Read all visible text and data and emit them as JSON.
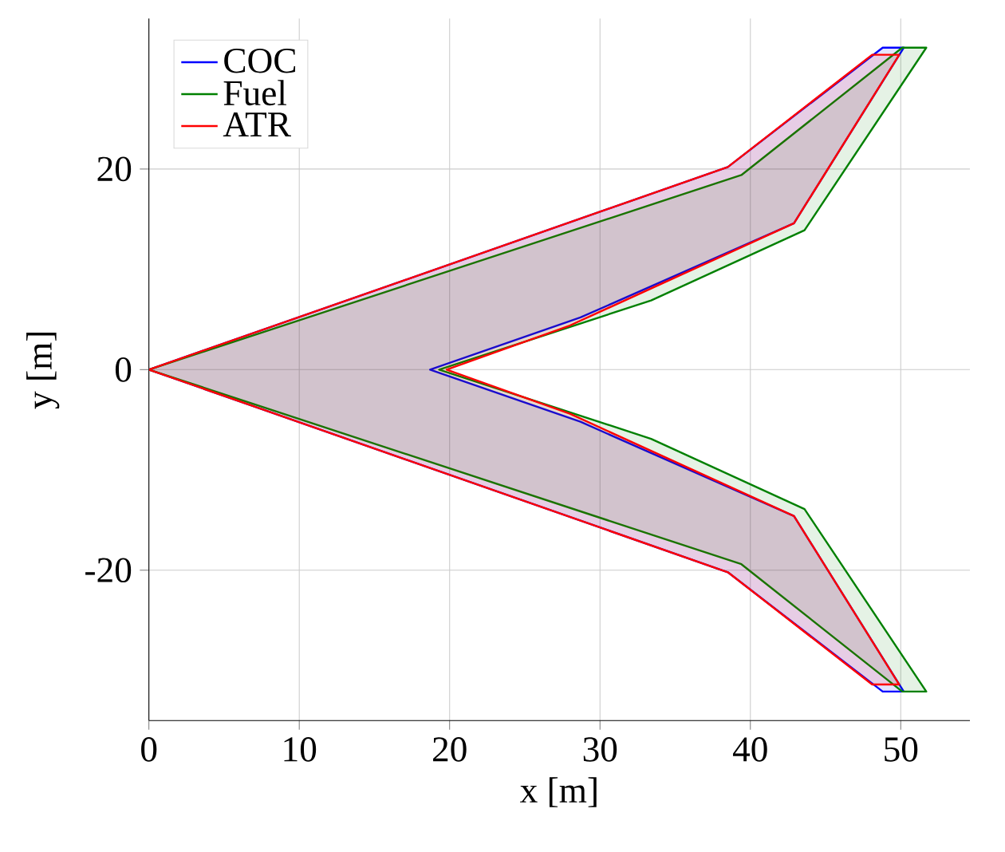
{
  "chart_data": {
    "type": "area",
    "xlabel": "x [m]",
    "ylabel": "y [m]",
    "xlim": [
      0,
      54.6
    ],
    "ylim": [
      -35,
      35
    ],
    "xticks": [
      0,
      10,
      20,
      30,
      40,
      50
    ],
    "yticks": [
      -20,
      0,
      20
    ],
    "grid": true,
    "legend": "top left",
    "series": [
      {
        "name": "COC",
        "color": "#0000ff",
        "x": [
          0,
          38.5,
          48.8,
          50.2,
          42.9,
          28.7,
          18.7,
          28.7,
          42.9,
          50.2,
          48.8,
          38.5,
          0
        ],
        "values": [
          0,
          20.2,
          32.1,
          32.1,
          14.6,
          5.2,
          0,
          -5.2,
          -14.6,
          -32.1,
          -32.1,
          -20.2,
          0
        ]
      },
      {
        "name": "Fuel",
        "color": "#008000",
        "x": [
          0,
          39.4,
          50.1,
          51.7,
          43.6,
          33.4,
          19.3,
          33.4,
          43.6,
          51.7,
          50.1,
          39.4,
          0
        ],
        "values": [
          0,
          19.4,
          32.1,
          32.1,
          13.9,
          6.9,
          0,
          -6.9,
          -13.9,
          -32.1,
          -32.1,
          -19.4,
          0
        ]
      },
      {
        "name": "ATR",
        "color": "#ff0000",
        "x": [
          0,
          38.5,
          48.1,
          49.9,
          42.9,
          28.0,
          19.8,
          28.0,
          42.9,
          49.9,
          48.1,
          38.5,
          0
        ],
        "values": [
          0,
          20.2,
          31.4,
          31.4,
          14.6,
          4.4,
          0,
          -4.4,
          -14.6,
          -31.4,
          -31.4,
          -20.2,
          0
        ]
      }
    ]
  }
}
